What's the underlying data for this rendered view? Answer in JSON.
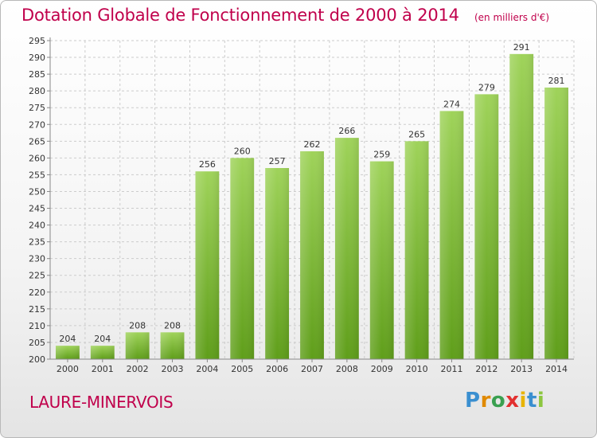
{
  "title": "Dotation Globale de Fonctionnement de 2000 à 2014",
  "subtitle": "(en milliers d'€)",
  "commune": "LAURE-MINERVOIS",
  "logo": {
    "parts": [
      "P",
      "r",
      "o",
      "x",
      "i",
      "t",
      "i"
    ]
  },
  "colors": {
    "title": "#c0004b",
    "bar_top": "#9fd35a",
    "bar_bottom": "#5f9e1a",
    "grid": "#cccccc"
  },
  "chart_data": {
    "type": "bar",
    "title": "Dotation Globale de Fonctionnement de 2000 à 2014",
    "categories": [
      "2000",
      "2001",
      "2002",
      "2003",
      "2004",
      "2005",
      "2006",
      "2007",
      "2008",
      "2009",
      "2010",
      "2011",
      "2012",
      "2013",
      "2014"
    ],
    "values": [
      204,
      204,
      208,
      208,
      256,
      260,
      257,
      262,
      266,
      259,
      265,
      274,
      279,
      291,
      281
    ],
    "ylim": [
      200,
      295
    ],
    "yticks": [
      200,
      205,
      210,
      215,
      220,
      225,
      230,
      235,
      240,
      245,
      250,
      255,
      260,
      265,
      270,
      275,
      280,
      285,
      290,
      295
    ],
    "grid": true,
    "xlabel": "",
    "ylabel": ""
  }
}
